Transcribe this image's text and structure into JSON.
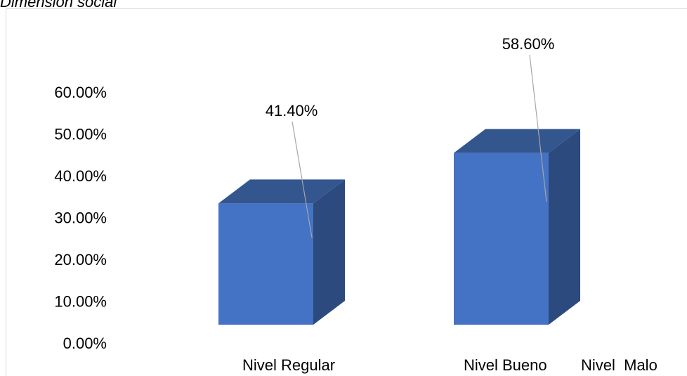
{
  "chart_data": {
    "type": "bar",
    "title": "Dimensión social",
    "categories": [
      "Nivel Regular",
      "Nivel Bueno",
      "Nivel  Malo"
    ],
    "values": [
      41.4,
      58.6,
      null
    ],
    "data_labels": [
      "41.40%",
      "58.60%",
      ""
    ],
    "ylim": [
      0,
      60
    ],
    "yticks": [
      "0.00%",
      "10.00%",
      "20.00%",
      "30.00%",
      "40.00%",
      "50.00%",
      "60.00%"
    ],
    "xlabel": "",
    "ylabel": "",
    "grid": false,
    "style": "3d-column",
    "colors": {
      "front": "#4472c4",
      "top": "#33568f",
      "side": "#2c4a7e",
      "leader": "#a6a6a6"
    }
  }
}
